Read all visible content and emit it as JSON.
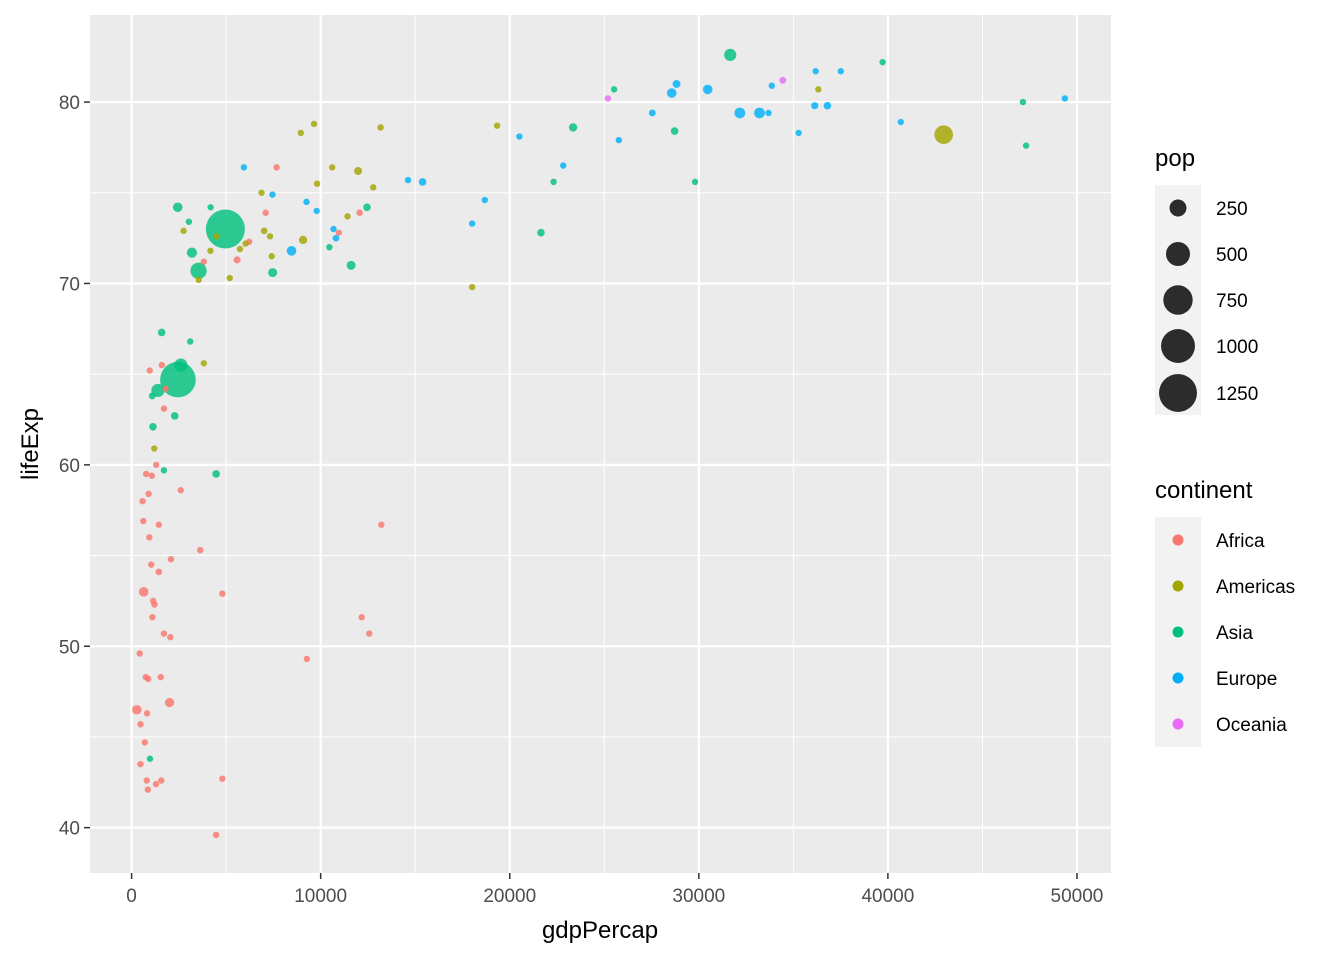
{
  "chart_data": {
    "type": "scatter",
    "xlabel": "gdpPercap",
    "ylabel": "lifeExp",
    "xlim": [
      -2200,
      51800
    ],
    "ylim": [
      37.5,
      84.8
    ],
    "x_ticks": [
      0,
      10000,
      20000,
      30000,
      40000,
      50000
    ],
    "x_tick_labels": [
      "0",
      "10000",
      "20000",
      "30000",
      "40000",
      "50000"
    ],
    "y_ticks": [
      40,
      50,
      60,
      70,
      80
    ],
    "y_tick_labels": [
      "40",
      "50",
      "60",
      "70",
      "80"
    ],
    "grid": true,
    "legend_position": "right",
    "size_legend": {
      "title": "pop",
      "labels": [
        "250",
        "500",
        "750",
        "1000",
        "1250"
      ],
      "values": [
        250,
        500,
        750,
        1000,
        1250
      ]
    },
    "color_legend": {
      "title": "continent",
      "labels": [
        "Africa",
        "Americas",
        "Asia",
        "Europe",
        "Oceania"
      ],
      "colors": [
        "#F8766D",
        "#A3A500",
        "#00BF7D",
        "#00B0F6",
        "#E76BF3"
      ]
    },
    "series": [
      {
        "name": "Africa",
        "color": "#F8766D",
        "points": [
          [
            277,
            46.5,
            80
          ],
          [
            430,
            49.6,
            5
          ],
          [
            470,
            45.7,
            5
          ],
          [
            470,
            43.5,
            10
          ],
          [
            580,
            58.0,
            5
          ],
          [
            620,
            56.9,
            15
          ],
          [
            640,
            53.0,
            80
          ],
          [
            700,
            44.7,
            10
          ],
          [
            750,
            48.3,
            15
          ],
          [
            770,
            59.5,
            15
          ],
          [
            800,
            42.6,
            15
          ],
          [
            820,
            46.3,
            20
          ],
          [
            860,
            42.1,
            25
          ],
          [
            880,
            48.2,
            15
          ],
          [
            900,
            58.4,
            15
          ],
          [
            940,
            56.0,
            10
          ],
          [
            960,
            65.2,
            3
          ],
          [
            1040,
            54.5,
            15
          ],
          [
            1070,
            59.4,
            20
          ],
          [
            1100,
            51.6,
            20
          ],
          [
            1140,
            52.5,
            25
          ],
          [
            1210,
            52.3,
            20
          ],
          [
            1290,
            42.4,
            20
          ],
          [
            1300,
            60.0,
            20
          ],
          [
            1440,
            56.7,
            10
          ],
          [
            1440,
            54.1,
            40
          ],
          [
            1540,
            48.3,
            20
          ],
          [
            1570,
            42.6,
            10
          ],
          [
            1600,
            65.5,
            2
          ],
          [
            1710,
            50.7,
            20
          ],
          [
            1710,
            63.1,
            25
          ],
          [
            1800,
            64.2,
            12
          ],
          [
            2010,
            46.9,
            75
          ],
          [
            2050,
            50.5,
            20
          ],
          [
            2080,
            54.8,
            3
          ],
          [
            2600,
            58.6,
            25
          ],
          [
            3630,
            55.3,
            10
          ],
          [
            3820,
            71.2,
            30
          ],
          [
            4470,
            39.6,
            5
          ],
          [
            4800,
            42.7,
            15
          ],
          [
            4800,
            52.9,
            5
          ],
          [
            5580,
            71.3,
            45
          ],
          [
            6220,
            72.3,
            30
          ],
          [
            7090,
            73.9,
            20
          ],
          [
            7670,
            76.4,
            5
          ],
          [
            9270,
            49.3,
            35
          ],
          [
            10960,
            72.8,
            5
          ],
          [
            12060,
            73.9,
            5
          ],
          [
            12170,
            51.6,
            2
          ],
          [
            12570,
            50.7,
            5
          ],
          [
            13210,
            56.7,
            5
          ]
        ]
      },
      {
        "name": "Americas",
        "color": "#A3A500",
        "points": [
          [
            1200,
            60.9,
            10
          ],
          [
            2750,
            72.9,
            10
          ],
          [
            3550,
            70.2,
            10
          ],
          [
            3820,
            65.6,
            10
          ],
          [
            4170,
            71.8,
            10
          ],
          [
            4500,
            72.6,
            15
          ],
          [
            5190,
            70.3,
            20
          ],
          [
            5730,
            71.9,
            20
          ],
          [
            6030,
            72.2,
            20
          ],
          [
            6870,
            75.0,
            20
          ],
          [
            7010,
            72.9,
            40
          ],
          [
            7320,
            72.6,
            15
          ],
          [
            7410,
            71.5,
            25
          ],
          [
            8950,
            78.3,
            15
          ],
          [
            9070,
            72.4,
            60
          ],
          [
            9650,
            78.8,
            10
          ],
          [
            9810,
            75.5,
            10
          ],
          [
            10610,
            76.4,
            10
          ],
          [
            11420,
            73.7,
            25
          ],
          [
            11980,
            76.2,
            55
          ],
          [
            12780,
            75.3,
            30
          ],
          [
            13170,
            78.6,
            15
          ],
          [
            18010,
            69.8,
            2
          ],
          [
            19330,
            78.7,
            10
          ],
          [
            36320,
            80.7,
            35
          ],
          [
            42950,
            78.2,
            300
          ]
        ]
      },
      {
        "name": "Asia",
        "color": "#00BF7D",
        "points": [
          [
            975,
            43.8,
            31
          ],
          [
            1090,
            63.8,
            40
          ],
          [
            1130,
            62.1,
            50
          ],
          [
            1390,
            64.1,
            150
          ],
          [
            1590,
            67.3,
            50
          ],
          [
            1710,
            59.7,
            30
          ],
          [
            2280,
            62.7,
            50
          ],
          [
            2440,
            74.2,
            80
          ],
          [
            2450,
            64.7,
            1100
          ],
          [
            2605,
            65.5,
            150
          ],
          [
            3030,
            73.4,
            25
          ],
          [
            3100,
            66.8,
            10
          ],
          [
            3190,
            71.7,
            90
          ],
          [
            3540,
            70.7,
            230
          ],
          [
            4180,
            74.2,
            30
          ],
          [
            4470,
            59.5,
            50
          ],
          [
            4960,
            73.0,
            1320
          ],
          [
            7460,
            70.6,
            70
          ],
          [
            10460,
            72.0,
            20
          ],
          [
            11610,
            71.0,
            70
          ],
          [
            12450,
            74.2,
            50
          ],
          [
            21650,
            72.8,
            50
          ],
          [
            22320,
            75.6,
            10
          ],
          [
            23350,
            78.6,
            60
          ],
          [
            25520,
            80.7,
            20
          ],
          [
            28720,
            78.4,
            50
          ],
          [
            29800,
            75.6,
            3
          ],
          [
            31660,
            82.6,
            130
          ],
          [
            39720,
            82.2,
            25
          ],
          [
            47140,
            80.0,
            20
          ],
          [
            47310,
            77.6,
            15
          ]
        ]
      },
      {
        "name": "Europe",
        "color": "#00B0F6",
        "points": [
          [
            5940,
            76.4,
            15
          ],
          [
            7450,
            74.9,
            15
          ],
          [
            8460,
            71.8,
            80
          ],
          [
            9250,
            74.5,
            10
          ],
          [
            9790,
            74.0,
            25
          ],
          [
            10680,
            73.0,
            30
          ],
          [
            10810,
            72.5,
            40
          ],
          [
            14620,
            75.7,
            20
          ],
          [
            15390,
            75.6,
            50
          ],
          [
            18010,
            73.3,
            30
          ],
          [
            18680,
            74.6,
            20
          ],
          [
            20510,
            78.1,
            35
          ],
          [
            22830,
            76.5,
            35
          ],
          [
            25770,
            77.9,
            15
          ],
          [
            27540,
            79.4,
            40
          ],
          [
            28570,
            80.5,
            80
          ],
          [
            28820,
            81.0,
            55
          ],
          [
            30470,
            80.7,
            80
          ],
          [
            32170,
            79.4,
            100
          ],
          [
            33210,
            79.4,
            100
          ],
          [
            33690,
            79.4,
            35
          ],
          [
            33860,
            80.9,
            35
          ],
          [
            35280,
            78.3,
            25
          ],
          [
            36130,
            79.8,
            45
          ],
          [
            36180,
            81.7,
            15
          ],
          [
            36800,
            79.8,
            50
          ],
          [
            37510,
            81.7,
            30
          ],
          [
            40680,
            78.9,
            25
          ],
          [
            49360,
            80.2,
            25
          ]
        ]
      },
      {
        "name": "Oceania",
        "color": "#E76BF3",
        "points": [
          [
            25190,
            80.2,
            12
          ],
          [
            34440,
            81.2,
            40
          ]
        ]
      }
    ]
  }
}
